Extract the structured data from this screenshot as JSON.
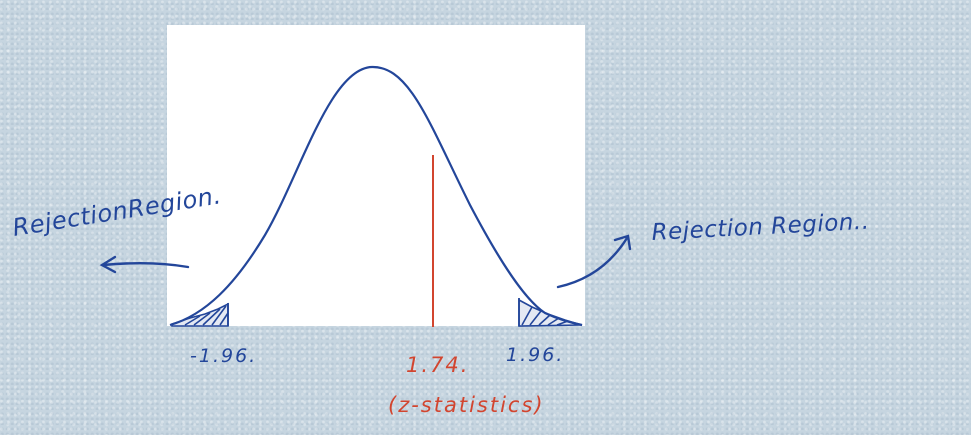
{
  "labels": {
    "left_region": "RejectionRegion.",
    "right_region": "Rejection Region..",
    "left_critical": "-1.96.",
    "right_critical": "1.96.",
    "z_value": "1.74.",
    "z_caption": "(z-statistics)"
  },
  "colors": {
    "ink": "#23469a",
    "statistic": "#d2452f",
    "panel": "#ffffff",
    "background": "#c6d5e0"
  }
}
